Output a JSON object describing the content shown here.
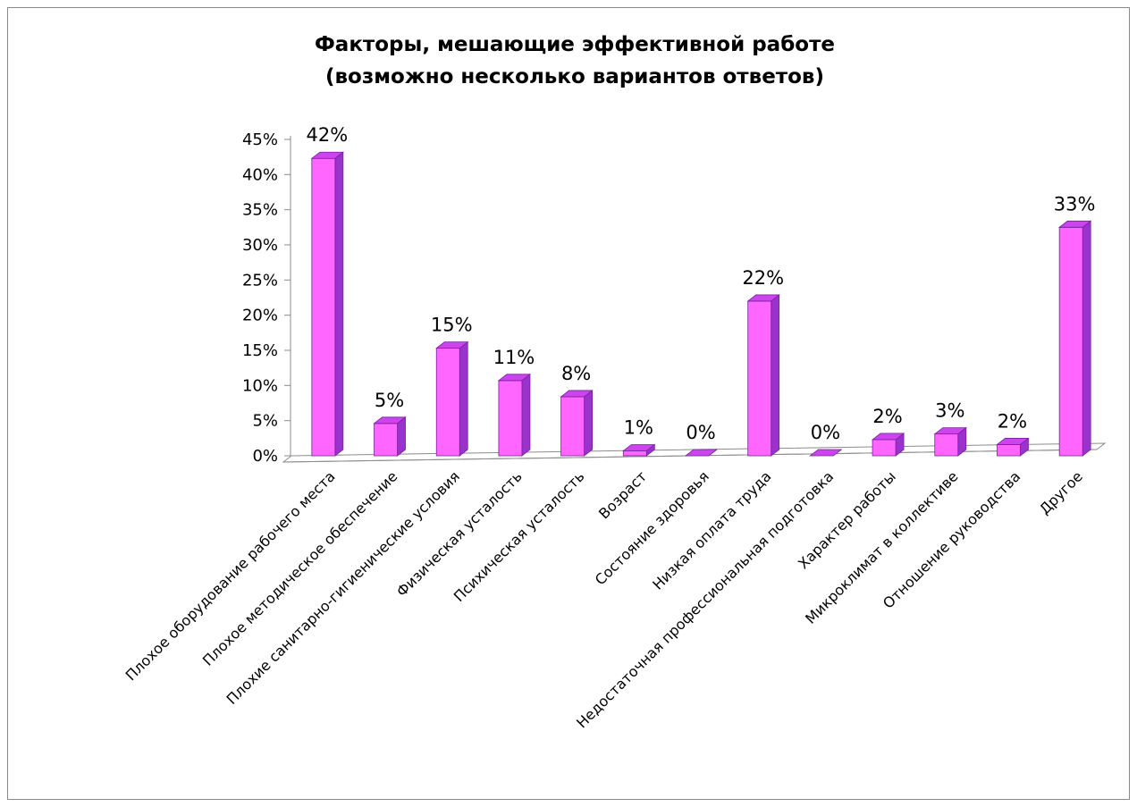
{
  "chart_data": {
    "type": "bar",
    "title": "Факторы, мешающие эффективной работе",
    "subtitle": "(возможно несколько вариантов ответов)",
    "xlabel": "",
    "ylabel": "",
    "ylim": [
      0,
      45
    ],
    "y_ticks": [
      "0%",
      "5%",
      "10%",
      "15%",
      "20%",
      "25%",
      "30%",
      "35%",
      "40%",
      "45%"
    ],
    "categories": [
      "Плохое оборудование рабочего места",
      "Плохое методическое обеспечение",
      "Плохие санитарно-гигиенические условия",
      "Физическая усталость",
      "Психическая усталость",
      "Возраст",
      "Состояние здоровья",
      "Низкая оплата труда",
      "Недостаточная профессиональная подготовка",
      "Характер работы",
      "Микроклимат в коллективе",
      "Отношение руководства",
      "Другое"
    ],
    "values": [
      42.3,
      4.6,
      15.3,
      10.7,
      8.4,
      0.7,
      0,
      22,
      0,
      2.3,
      3.1,
      1.6,
      32.5
    ],
    "data_labels": [
      "42%",
      "5%",
      "15%",
      "11%",
      "8%",
      "1%",
      "0%",
      "22%",
      "0%",
      "2%",
      "3%",
      "2%",
      "33%"
    ],
    "style": "3d-column",
    "grid": false,
    "legend": "none",
    "colors": {
      "bar_front": "#ff66ff",
      "bar_side": "#9933cc",
      "bar_top": "#cc44ee",
      "bar_edge": "#7a1fa0",
      "floor": "#ffffff",
      "floor_edge": "#8c8c8c"
    }
  }
}
